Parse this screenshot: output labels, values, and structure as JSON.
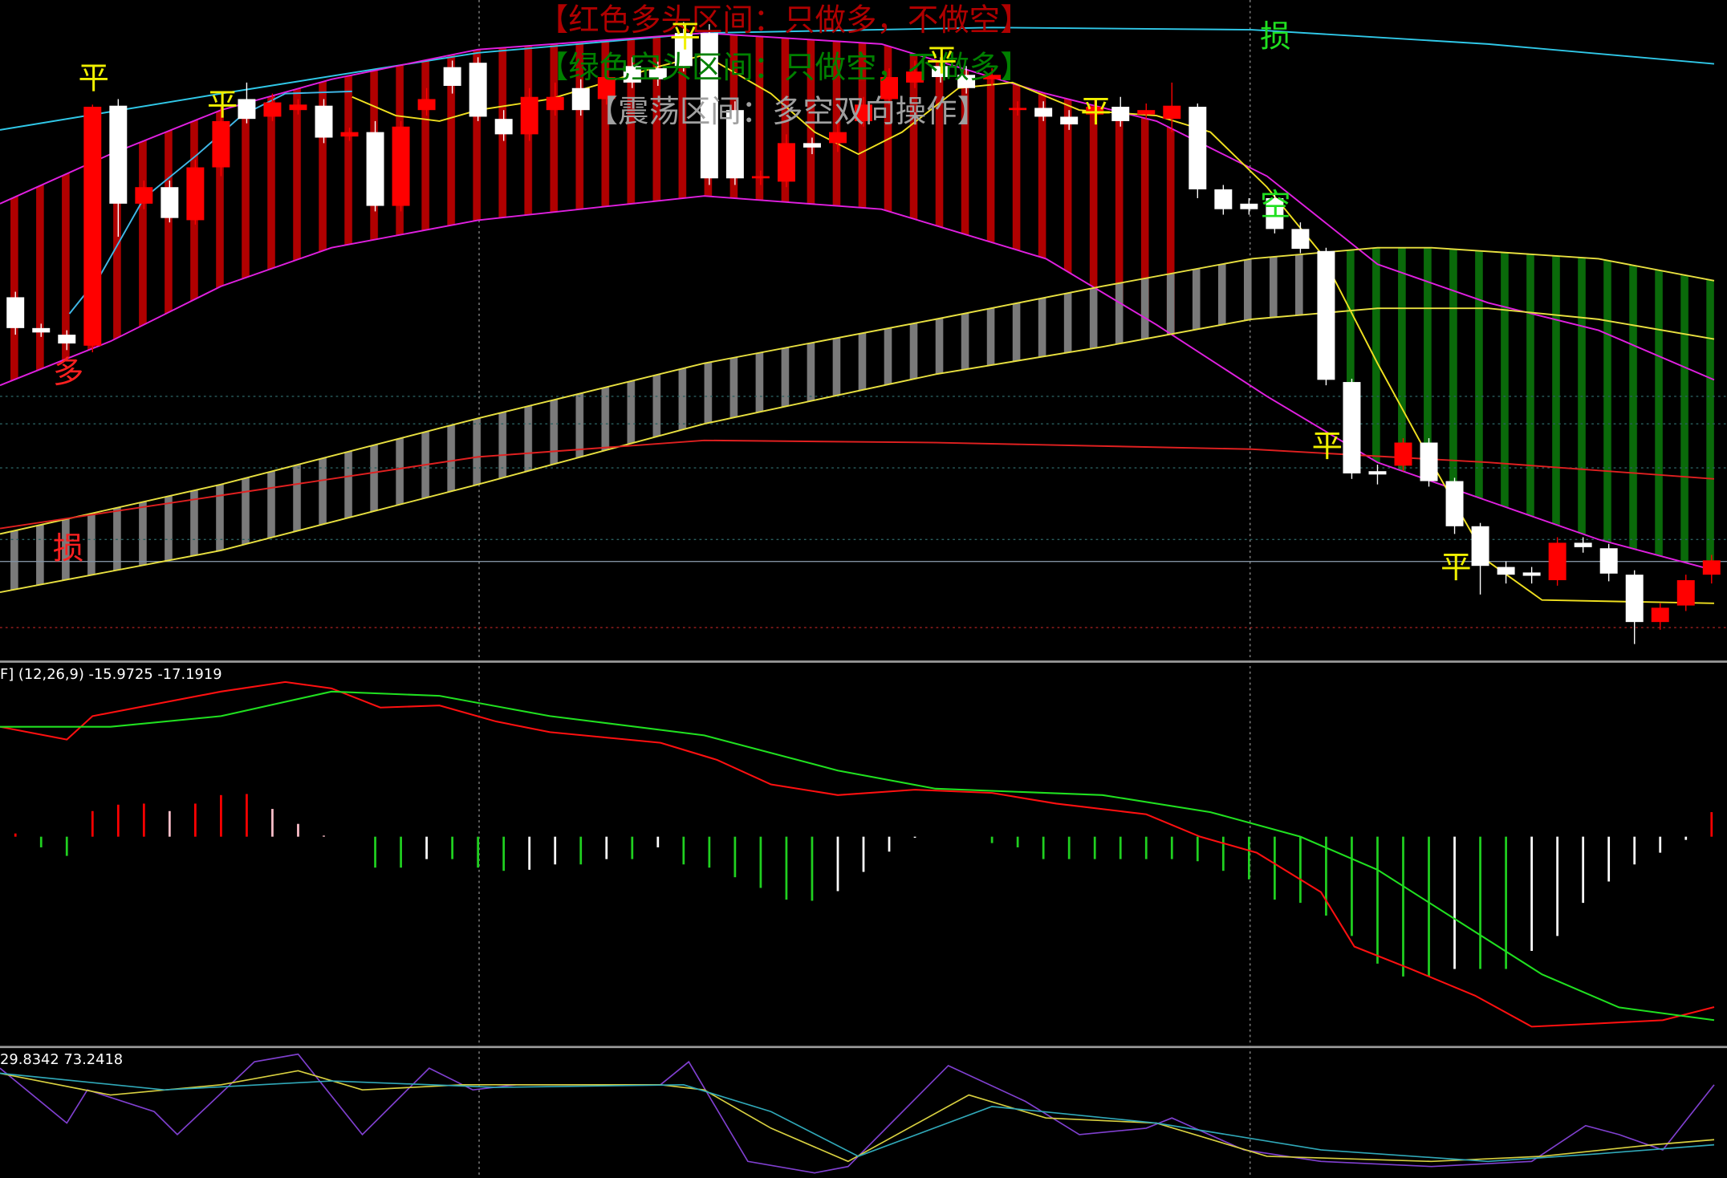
{
  "chart_data": [
    {
      "type": "candlestick",
      "xlim": [
        -0.6,
        66.6
      ],
      "ylim": [
        0,
        600
      ],
      "up_color": "#ffffff",
      "down_color": "#ff0000",
      "open": [
        302,
        298,
        288,
        503,
        415,
        430,
        402,
        448,
        490,
        492,
        507,
        505,
        475,
        480,
        413,
        485,
        510,
        522,
        494,
        478,
        512,
        512,
        500,
        530,
        525,
        528,
        540,
        438,
        438,
        440,
        470,
        466,
        480,
        505,
        530,
        535,
        530,
        520,
        532,
        502,
        494,
        487,
        503,
        490,
        500,
        504,
        428,
        410,
        410,
        392,
        374,
        255,
        170,
        169,
        198,
        163,
        122,
        86,
        78,
        77,
        107,
        103,
        79,
        35,
        48,
        73,
        91
      ],
      "high": [
        335,
        306,
        300,
        505,
        510,
        436,
        436,
        455,
        505,
        525,
        515,
        510,
        510,
        484,
        490,
        490,
        520,
        545,
        548,
        500,
        520,
        525,
        528,
        538,
        548,
        545,
        580,
        578,
        508,
        445,
        478,
        475,
        488,
        512,
        538,
        545,
        548,
        540,
        538,
        508,
        508,
        500,
        510,
        512,
        506,
        525,
        506,
        432,
        420,
        425,
        398,
        375,
        256,
        178,
        202,
        202,
        166,
        125,
        90,
        85,
        112,
        112,
        106,
        82,
        52,
        78,
        96
      ],
      "low": [
        296,
        294,
        282,
        280,
        385,
        410,
        398,
        396,
        440,
        488,
        490,
        496,
        470,
        472,
        408,
        408,
        495,
        515,
        490,
        472,
        472,
        495,
        495,
        505,
        520,
        522,
        535,
        432,
        432,
        432,
        430,
        460,
        462,
        485,
        505,
        520,
        525,
        515,
        522,
        495,
        490,
        482,
        490,
        485,
        492,
        480,
        420,
        405,
        405,
        388,
        370,
        250,
        165,
        160,
        172,
        158,
        115,
        60,
        70,
        70,
        68,
        98,
        72,
        15,
        28,
        45,
        70
      ],
      "close": [
        330,
        302,
        296,
        286,
        504,
        415,
        430,
        400,
        448,
        510,
        494,
        500,
        504,
        476,
        480,
        413,
        500,
        539,
        543,
        492,
        478,
        500,
        520,
        510,
        540,
        538,
        570,
        570,
        500,
        438,
        435,
        470,
        470,
        490,
        510,
        525,
        540,
        532,
        528,
        500,
        502,
        494,
        496,
        503,
        496,
        492,
        503,
        428,
        415,
        420,
        392,
        372,
        253,
        172,
        177,
        198,
        163,
        122,
        85,
        80,
        73,
        107,
        102,
        78,
        35,
        50,
        78
      ],
      "series": [
        {
          "color": "#30c8e8",
          "x": [
            -0.6,
            8.0,
            18.0,
            26.8,
            38.0,
            48.1,
            57.3,
            66.1
          ],
          "values": [
            482,
            515,
            552,
            570,
            575,
            573,
            560,
            542
          ]
        },
        {
          "color": "#e020e0",
          "x": [
            -0.6,
            3.7,
            8.0,
            12.3,
            18.0,
            26.8,
            33.7,
            40.1,
            44.4,
            48.7,
            53.0,
            57.3,
            61.6,
            66.1
          ],
          "values": [
            415,
            460,
            500,
            528,
            555,
            570,
            560,
            515,
            490,
            440,
            360,
            325,
            300,
            255
          ]
        },
        {
          "color": "#e020e0",
          "x": [
            -0.6,
            3.7,
            8.0,
            12.3,
            18.0,
            26.8,
            33.7,
            40.1,
            44.4,
            48.7,
            53.0,
            57.3,
            61.6,
            66.1
          ],
          "values": [
            250,
            290,
            340,
            375,
            400,
            422,
            410,
            365,
            305,
            240,
            180,
            145,
            110,
            82
          ]
        },
        {
          "color": "#e8e040",
          "x": [
            -0.6,
            8.0,
            18.0,
            26.8,
            35.8,
            42.3,
            48.1,
            53.0,
            55.1,
            61.6,
            66.1
          ],
          "values": [
            115,
            160,
            220,
            270,
            310,
            340,
            365,
            375,
            375,
            365,
            345
          ]
        },
        {
          "color": "#e8e040",
          "x": [
            -0.6,
            8.0,
            18.0,
            26.8,
            35.8,
            42.3,
            48.1,
            53.0,
            57.3,
            61.6,
            66.1
          ],
          "values": [
            62,
            100,
            160,
            215,
            260,
            285,
            310,
            320,
            320,
            310,
            292
          ]
        },
        {
          "color": "#e02020",
          "x": [
            -0.6,
            8.0,
            18.0,
            26.8,
            35.8,
            48.1,
            57.3,
            66.1
          ],
          "values": [
            120,
            150,
            185,
            200,
            198,
            192,
            180,
            165
          ]
        },
        {
          "color": "#40b8e8",
          "x": [
            2.1,
            3.3,
            5.0,
            7.1,
            8.8,
            10.5,
            13.1
          ],
          "values": [
            315,
            350,
            420,
            460,
            495,
            515,
            517
          ]
        },
        {
          "color": "#f0e020",
          "x": [
            13.1,
            14.8,
            16.5,
            18.0,
            20.8,
            25.1,
            26.8,
            29.4,
            31.1,
            32.8,
            34.5,
            36.7,
            38.8,
            41.4,
            44.4,
            46.5,
            48.7,
            50.8,
            53.0,
            55.1,
            57.3,
            59.4,
            66.1
          ],
          "values": [
            512,
            495,
            490,
            500,
            510,
            540,
            550,
            515,
            480,
            460,
            480,
            520,
            525,
            500,
            495,
            480,
            430,
            370,
            270,
            180,
            90,
            55,
            52
          ]
        }
      ],
      "levels": [
        240,
        215,
        175,
        110,
        90,
        30
      ],
      "level_colors": [
        "#2a6060",
        "#2a6060",
        "#2a6060",
        "#2a6060",
        "#8090a0",
        "#a02020"
      ],
      "annotations": [
        "【红色多头区间：只做多，不做空】",
        "【绿色空头区间：只做空，不做多】",
        "【震荡区间：多空双向操作】",
        "平",
        "平",
        "平",
        "平",
        "平",
        "平",
        "平",
        "多",
        "损",
        "损",
        "空"
      ]
    },
    {
      "type": "macd",
      "title": "F] (12,26,9) -15.9725 -17.1919",
      "xlim": [
        -0.6,
        66.6
      ],
      "ylim": [
        -19.4,
        16.3
      ],
      "histogram": [
        0.3,
        -1,
        -1.8,
        2.4,
        3.0,
        3.1,
        2.4,
        3.1,
        3.9,
        4.0,
        2.6,
        1.2,
        0.1,
        0,
        -2.9,
        -2.9,
        -2.1,
        -2.1,
        -2.9,
        -3.2,
        -3.1,
        -2.6,
        -2.6,
        -2.1,
        -2.1,
        -1.0,
        -2.6,
        -2.9,
        -3.8,
        -4.8,
        -5.9,
        -6.0,
        -5.1,
        -3.3,
        -1.4,
        -0.1,
        0,
        0,
        -0.6,
        -1.0,
        -2.1,
        -2.1,
        -2.1,
        -2.1,
        -2.1,
        -2.1,
        -2.3,
        -3.2,
        -4.0,
        -5.9,
        -6.2,
        -7.4,
        -9.3,
        -11.9,
        -13.1,
        -13.1,
        -12.4,
        -12.4,
        -12.4,
        -10.7,
        -9.3,
        -6.2,
        -4.2,
        -2.6,
        -1.5,
        -0.3,
        2.3
      ],
      "histogram_colors": {
        "pos_up": "#ff0000",
        "pos_down": "#ffc0cb",
        "neg_down": "#20d020",
        "neg_up": "#ffffff"
      },
      "series": [
        {
          "color": "#ff1010",
          "x": [
            -0.6,
            2.0,
            3.0,
            8.0,
            10.5,
            12.3,
            14.2,
            16.5,
            18.7,
            20.8,
            25.1,
            27.3,
            29.4,
            32.0,
            35.0,
            38.0,
            40.5,
            44.0,
            46.1,
            48.3,
            50.8,
            52.1,
            54.3,
            56.8,
            59.0,
            61.6,
            64.1,
            66.1
          ],
          "values": [
            10.3,
            9.1,
            11.3,
            13.6,
            14.5,
            13.9,
            12.1,
            12.3,
            10.8,
            9.8,
            8.8,
            7.2,
            4.9,
            3.9,
            4.4,
            4.1,
            3.1,
            2.1,
            0,
            -1.5,
            -5.2,
            -10.3,
            -12.4,
            -14.9,
            -17.8,
            -17.5,
            -17.2,
            -15.9725
          ]
        },
        {
          "color": "#20e020",
          "x": [
            -0.6,
            3.7,
            8.0,
            12.3,
            16.5,
            20.8,
            26.8,
            32.0,
            35.8,
            42.3,
            46.5,
            50.0,
            53.0,
            56.0,
            59.4,
            62.4,
            66.1
          ],
          "values": [
            10.3,
            10.3,
            11.3,
            13.6,
            13.2,
            11.3,
            9.5,
            6.2,
            4.5,
            3.9,
            2.3,
            0,
            -3.1,
            -7.7,
            -12.9,
            -16.0,
            -17.1919
          ]
        }
      ]
    },
    {
      "type": "line",
      "title": "29.8342 73.2418",
      "xlim": [
        -0.6,
        66.6
      ],
      "ylim": [
        0,
        100
      ],
      "series": [
        {
          "color": "#8040d0",
          "x": [
            -0.6,
            2.0,
            2.8,
            5.4,
            6.3,
            9.3,
            11.0,
            13.5,
            14.8,
            16.1,
            17.8,
            19.5,
            25.1,
            26.2,
            28.5,
            31.1,
            32.4,
            36.3,
            39.3,
            41.4,
            44.0,
            45.0,
            47.8,
            50.8,
            55.1,
            59.0,
            61.1,
            62.4,
            64.1,
            66.1
          ],
          "values": [
            86,
            43,
            69,
            52,
            34,
            91,
            97,
            34,
            60,
            86,
            69,
            73,
            73,
            91,
            13,
            4,
            9,
            88,
            60,
            34,
            39,
            47,
            22,
            13,
            9,
            13,
            41,
            34,
            22,
            73
          ]
        },
        {
          "color": "#d8d040",
          "x": [
            -0.6,
            3.7,
            8.0,
            11.0,
            13.5,
            17.4,
            25.1,
            26.8,
            29.4,
            32.4,
            37.1,
            40.1,
            44.4,
            48.7,
            55.1,
            59.4,
            63.7,
            66.1
          ],
          "values": [
            82,
            65,
            73,
            84,
            69,
            73,
            73,
            69,
            39,
            13,
            65,
            47,
            43,
            17,
            13,
            17,
            26,
            30
          ]
        },
        {
          "color": "#30a8b8",
          "x": [
            -0.6,
            5.8,
            12.3,
            18.7,
            26.0,
            29.4,
            32.8,
            38.0,
            44.4,
            50.8,
            57.3,
            61.6,
            66.1
          ],
          "values": [
            82,
            69,
            76,
            71,
            73,
            52,
            17,
            56,
            43,
            22,
            13,
            19,
            26
          ]
        }
      ]
    }
  ]
}
